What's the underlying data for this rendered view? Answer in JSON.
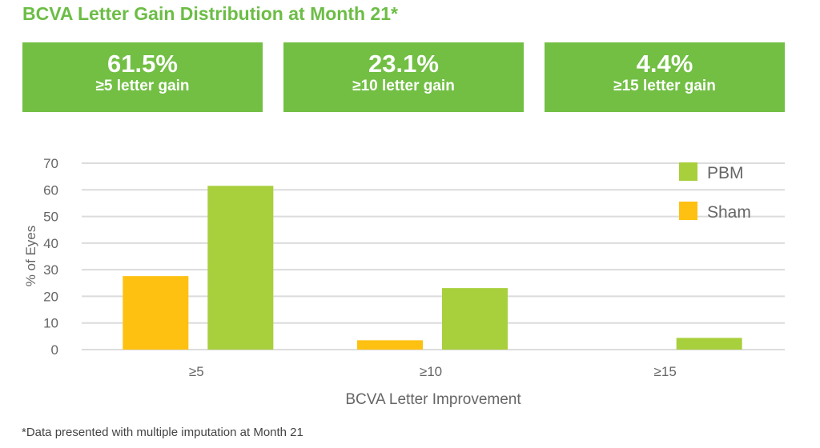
{
  "title": "BCVA Letter Gain Distribution at Month 21*",
  "stats": [
    {
      "value": "61.5%",
      "label": "≥5 letter gain"
    },
    {
      "value": "23.1%",
      "label": "≥10 letter gain"
    },
    {
      "value": "4.4%",
      "label": "≥15 letter gain"
    }
  ],
  "footnote": "*Data presented with multiple imputation at Month 21",
  "colors": {
    "pbm": "#a8cf3c",
    "sham": "#fec111",
    "header": "#72bf44",
    "title": "#6cbd45"
  },
  "chart_data": {
    "type": "bar",
    "categories": [
      "≥5",
      "≥10",
      "≥15"
    ],
    "series": [
      {
        "name": "Sham",
        "values": [
          27.6,
          3.5,
          0
        ]
      },
      {
        "name": "PBM",
        "values": [
          61.5,
          23.1,
          4.4
        ]
      }
    ],
    "xlabel": "BCVA Letter Improvement",
    "ylabel": "% of Eyes",
    "ylim": [
      0,
      70
    ],
    "yticks": [
      "0",
      "10",
      "20",
      "30",
      "40",
      "50",
      "60",
      "70"
    ],
    "grid": true,
    "legend": {
      "position": "top-right",
      "entries": [
        "PBM",
        "Sham"
      ]
    }
  }
}
